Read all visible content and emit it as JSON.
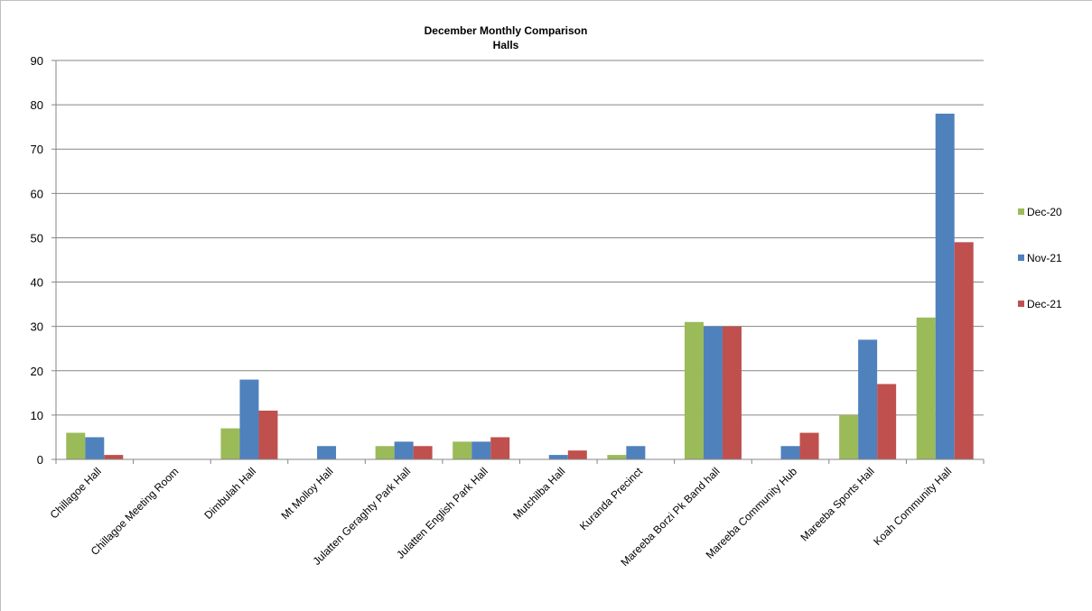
{
  "chart_data": {
    "type": "bar",
    "title": "December  Monthly Comparison",
    "subtitle": "Halls",
    "xlabel": "",
    "ylabel": "",
    "ylim": [
      0,
      90
    ],
    "yticks": [
      0,
      10,
      20,
      30,
      40,
      50,
      60,
      70,
      80,
      90
    ],
    "grid": true,
    "legend_position": "right",
    "categories": [
      "Chillagoe Hall",
      "Chillagoe Meeting Room",
      "Dimbulah Hall",
      "Mt Molloy Hall",
      "Julatten Geraghty Park Hall",
      "Julatten English Park Hall",
      "Mutchilba Hall",
      "Kuranda Precinct",
      "Mareeba Borzi Pk Band hall",
      "Mareeba Community Hub",
      "Mareeba Sports Hall",
      "Koah Community Hall"
    ],
    "series": [
      {
        "name": "Dec-20",
        "color": "#9bbb59",
        "values": [
          6,
          0,
          7,
          0,
          3,
          4,
          0,
          1,
          31,
          0,
          10,
          32
        ]
      },
      {
        "name": "Nov-21",
        "color": "#4f81bd",
        "values": [
          5,
          0,
          18,
          3,
          4,
          4,
          1,
          3,
          30,
          3,
          27,
          78
        ]
      },
      {
        "name": "Dec-21",
        "color": "#c0504d",
        "values": [
          1,
          0,
          11,
          0,
          3,
          5,
          2,
          0,
          30,
          6,
          17,
          49
        ]
      }
    ]
  }
}
